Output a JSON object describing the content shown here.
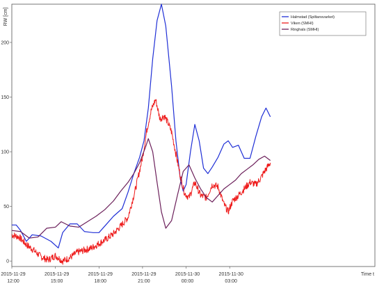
{
  "chart_data": {
    "type": "line",
    "ylabel": "RW [cm]",
    "xlabel": "Time t",
    "ylim": [
      -5,
      235
    ],
    "xlim": [
      0,
      25
    ],
    "yticks": [
      0,
      50,
      100,
      150,
      200
    ],
    "xticks": [
      {
        "x": 0,
        "date": "2015-11-29",
        "time": "12:00"
      },
      {
        "x": 3,
        "date": "2015-11-29",
        "time": "15:00"
      },
      {
        "x": 6,
        "date": "2015-11-29",
        "time": "18:00"
      },
      {
        "x": 9,
        "date": "2015-11-29",
        "time": "21:00"
      },
      {
        "x": 12,
        "date": "2015-11-30",
        "time": "00:00"
      },
      {
        "x": 15,
        "date": "2015-11-30",
        "time": "03:00"
      }
    ],
    "grid": true,
    "legend_position": "top-right",
    "series": [
      {
        "name": "Halmstad (Spiltansvarket)",
        "color": "#1f2fd6",
        "noise": 0,
        "points": [
          [
            0,
            33
          ],
          [
            0.3,
            33
          ],
          [
            0.6,
            28
          ],
          [
            1.0,
            18
          ],
          [
            1.4,
            24
          ],
          [
            2.0,
            23
          ],
          [
            2.7,
            18
          ],
          [
            3.2,
            12
          ],
          [
            3.5,
            26
          ],
          [
            4.0,
            34
          ],
          [
            4.5,
            34
          ],
          [
            5.0,
            27
          ],
          [
            5.6,
            26
          ],
          [
            6.0,
            26
          ],
          [
            6.6,
            35
          ],
          [
            7.0,
            41
          ],
          [
            7.6,
            48
          ],
          [
            8.0,
            63
          ],
          [
            8.4,
            80
          ],
          [
            8.8,
            95
          ],
          [
            9.1,
            110
          ],
          [
            9.4,
            140
          ],
          [
            9.7,
            185
          ],
          [
            10.0,
            220
          ],
          [
            10.3,
            235
          ],
          [
            10.6,
            215
          ],
          [
            11.0,
            160
          ],
          [
            11.3,
            110
          ],
          [
            11.6,
            75
          ],
          [
            11.8,
            64
          ],
          [
            12.0,
            70
          ],
          [
            12.3,
            100
          ],
          [
            12.6,
            125
          ],
          [
            12.9,
            110
          ],
          [
            13.2,
            85
          ],
          [
            13.5,
            80
          ],
          [
            13.8,
            86
          ],
          [
            14.2,
            95
          ],
          [
            14.6,
            107
          ],
          [
            14.9,
            110
          ],
          [
            15.2,
            104
          ],
          [
            15.6,
            106
          ],
          [
            16.0,
            94
          ],
          [
            16.4,
            94
          ],
          [
            16.8,
            114
          ],
          [
            17.2,
            132
          ],
          [
            17.5,
            140
          ],
          [
            17.8,
            132
          ]
        ]
      },
      {
        "name": "Viken (SMHI)",
        "color": "#ee1c1c",
        "noise": 3.2,
        "points": [
          [
            0,
            24
          ],
          [
            0.5,
            22
          ],
          [
            1.0,
            15
          ],
          [
            1.5,
            10
          ],
          [
            2.0,
            4
          ],
          [
            2.5,
            1
          ],
          [
            3.0,
            5
          ],
          [
            3.5,
            0
          ],
          [
            4.0,
            3
          ],
          [
            4.5,
            8
          ],
          [
            5.0,
            10
          ],
          [
            5.5,
            12
          ],
          [
            6.0,
            16
          ],
          [
            6.5,
            20
          ],
          [
            7.0,
            25
          ],
          [
            7.5,
            32
          ],
          [
            8.0,
            40
          ],
          [
            8.5,
            65
          ],
          [
            9.0,
            95
          ],
          [
            9.3,
            120
          ],
          [
            9.6,
            138
          ],
          [
            9.9,
            148
          ],
          [
            10.2,
            130
          ],
          [
            10.5,
            133
          ],
          [
            10.8,
            125
          ],
          [
            11.0,
            118
          ],
          [
            11.3,
            98
          ],
          [
            11.6,
            78
          ],
          [
            11.9,
            62
          ],
          [
            12.2,
            58
          ],
          [
            12.6,
            72
          ],
          [
            13.0,
            60
          ],
          [
            13.4,
            58
          ],
          [
            13.8,
            70
          ],
          [
            14.2,
            68
          ],
          [
            14.6,
            52
          ],
          [
            14.9,
            45
          ],
          [
            15.2,
            55
          ],
          [
            15.6,
            60
          ],
          [
            16.0,
            66
          ],
          [
            16.4,
            72
          ],
          [
            16.8,
            70
          ],
          [
            17.1,
            75
          ],
          [
            17.4,
            82
          ],
          [
            17.8,
            90
          ]
        ]
      },
      {
        "name": "Ringhals (SMHI)",
        "color": "#6b1f5a",
        "noise": 0,
        "points": [
          [
            0,
            28
          ],
          [
            0.6,
            27
          ],
          [
            1.2,
            21
          ],
          [
            1.8,
            22
          ],
          [
            2.4,
            30
          ],
          [
            3.0,
            31
          ],
          [
            3.4,
            36
          ],
          [
            4.0,
            32
          ],
          [
            4.6,
            31
          ],
          [
            5.2,
            36
          ],
          [
            5.8,
            41
          ],
          [
            6.4,
            47
          ],
          [
            7.0,
            55
          ],
          [
            7.5,
            64
          ],
          [
            8.0,
            72
          ],
          [
            8.4,
            80
          ],
          [
            8.8,
            90
          ],
          [
            9.2,
            104
          ],
          [
            9.4,
            112
          ],
          [
            9.7,
            100
          ],
          [
            10.0,
            72
          ],
          [
            10.3,
            45
          ],
          [
            10.6,
            30
          ],
          [
            11.0,
            37
          ],
          [
            11.4,
            60
          ],
          [
            11.8,
            82
          ],
          [
            12.2,
            88
          ],
          [
            12.6,
            76
          ],
          [
            13.0,
            66
          ],
          [
            13.4,
            58
          ],
          [
            13.8,
            54
          ],
          [
            14.2,
            60
          ],
          [
            14.6,
            66
          ],
          [
            15.0,
            70
          ],
          [
            15.4,
            74
          ],
          [
            15.8,
            80
          ],
          [
            16.2,
            84
          ],
          [
            16.6,
            88
          ],
          [
            17.0,
            93
          ],
          [
            17.4,
            96
          ],
          [
            17.8,
            92
          ]
        ]
      }
    ]
  }
}
